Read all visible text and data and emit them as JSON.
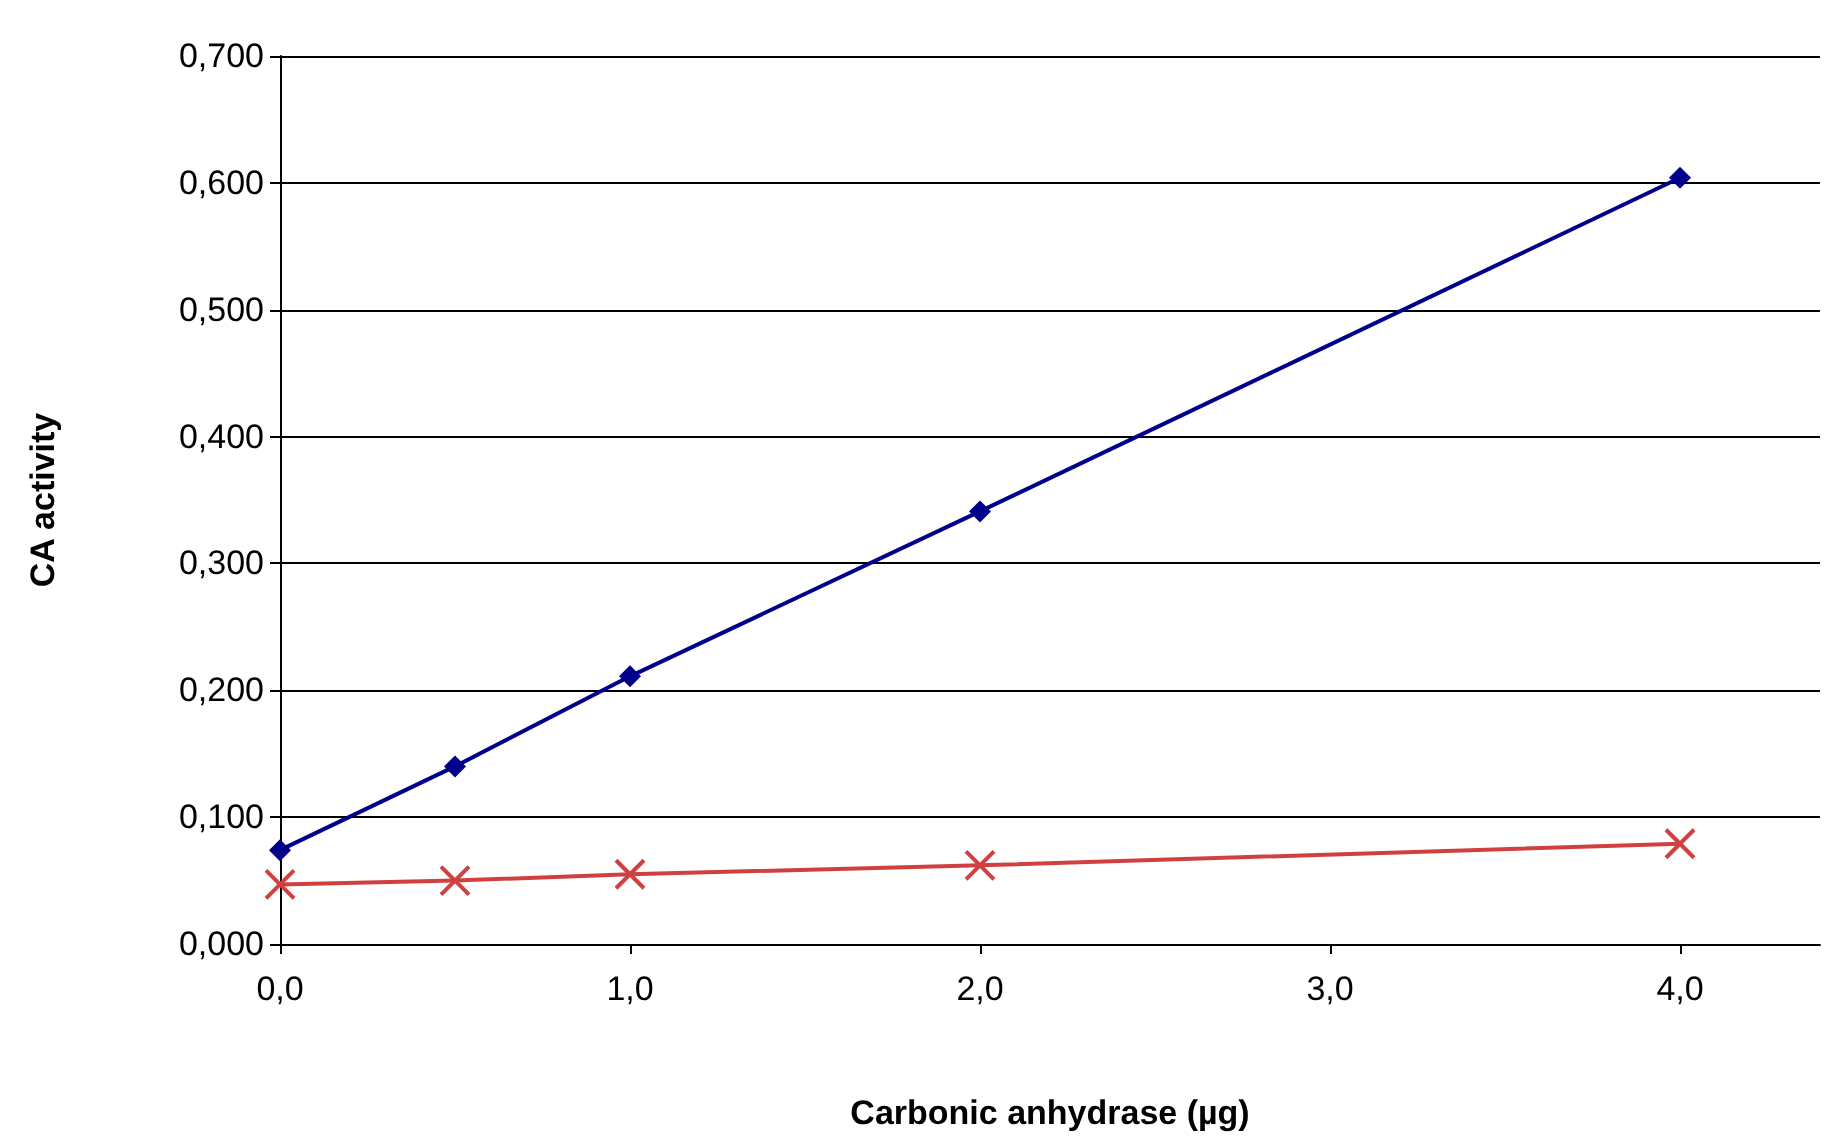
{
  "chart_data": {
    "type": "line",
    "xlabel": "Carbonic anhydrase (µg)",
    "ylabel": "CA activity",
    "xlim": [
      0,
      4.4
    ],
    "xticks": [
      {
        "value": 0,
        "label": "0,0"
      },
      {
        "value": 1,
        "label": "1,0"
      },
      {
        "value": 2,
        "label": "2,0"
      },
      {
        "value": 3,
        "label": "3,0"
      },
      {
        "value": 4,
        "label": "4,0"
      }
    ],
    "ylim": [
      0,
      0.7
    ],
    "yticks": [
      {
        "value": 0,
        "label": "0,000"
      },
      {
        "value": 0.1,
        "label": "0,100"
      },
      {
        "value": 0.2,
        "label": "0,200"
      },
      {
        "value": 0.3,
        "label": "0,300"
      },
      {
        "value": 0.4,
        "label": "0,400"
      },
      {
        "value": 0.5,
        "label": "0,500"
      },
      {
        "value": 0.6,
        "label": "0,600"
      },
      {
        "value": 0.7,
        "label": "0,700"
      }
    ],
    "grid": "y",
    "line_style": "solid",
    "x": [
      0,
      0.5,
      1,
      2,
      4
    ],
    "series": [
      {
        "color": "#00008b",
        "marker": "diamond",
        "values": [
          0.074,
          0.14,
          0.211,
          0.341,
          0.604
        ]
      },
      {
        "color": "#d04040",
        "marker": "cross",
        "values": [
          0.047,
          0.05,
          0.055,
          0.062,
          0.079
        ]
      }
    ]
  }
}
